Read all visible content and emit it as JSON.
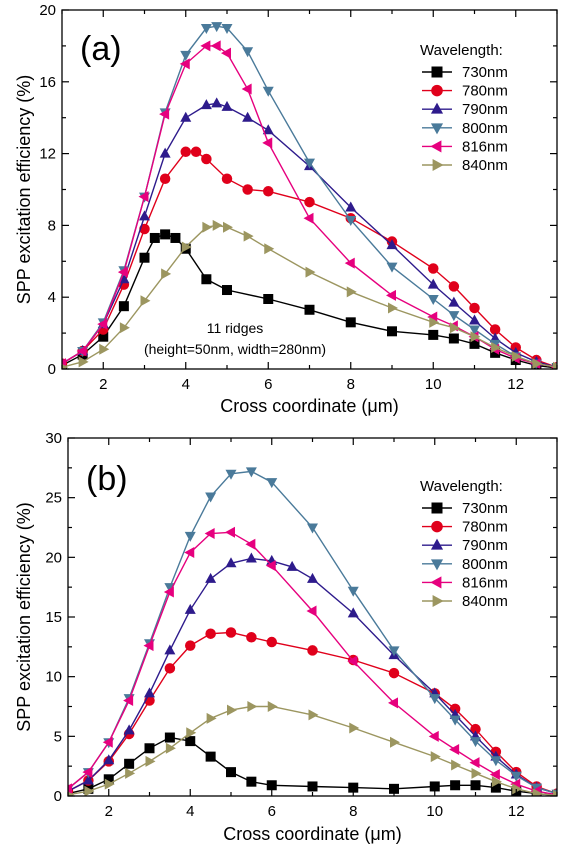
{
  "chart_data": [
    {
      "type": "scatter",
      "panel_label": "(a)",
      "xlabel": "Cross coordinate (μm)",
      "ylabel": "SPP excitation efficiency (%)",
      "xlim": [
        1,
        13
      ],
      "ylim": [
        0,
        20
      ],
      "xticks": [
        2,
        4,
        6,
        8,
        10,
        12
      ],
      "yticks": [
        0,
        4,
        8,
        12,
        16,
        20
      ],
      "grid": false,
      "legend_title": "Wavelength:",
      "legend_position": "top-right",
      "annotation": [
        "11 ridges",
        "(height=50nm, width=280nm)"
      ],
      "series": [
        {
          "name": "730nm",
          "color": "#000000",
          "marker": "square",
          "x": [
            1.0,
            1.5,
            2.0,
            2.5,
            3.0,
            3.25,
            3.5,
            3.75,
            4.0,
            4.5,
            5.0,
            6.0,
            7.0,
            8.0,
            9.0,
            10.0,
            10.5,
            11.0,
            11.5,
            12.0,
            12.5,
            13.0
          ],
          "y": [
            0.2,
            0.8,
            1.8,
            3.5,
            6.2,
            7.3,
            7.5,
            7.3,
            6.7,
            5.0,
            4.4,
            3.9,
            3.3,
            2.6,
            2.1,
            1.9,
            1.7,
            1.4,
            0.9,
            0.5,
            0.2,
            0.05
          ]
        },
        {
          "name": "780nm",
          "color": "#e0001b",
          "marker": "circle",
          "x": [
            1.0,
            1.5,
            2.0,
            2.5,
            3.0,
            3.5,
            4.0,
            4.25,
            4.5,
            5.0,
            5.5,
            6.0,
            7.0,
            8.0,
            9.0,
            10.0,
            10.5,
            11.0,
            11.5,
            12.0,
            12.5,
            13.0
          ],
          "y": [
            0.3,
            1.0,
            2.2,
            4.7,
            7.8,
            10.6,
            12.1,
            12.1,
            11.7,
            10.6,
            10.0,
            9.9,
            9.3,
            8.4,
            7.1,
            5.6,
            4.6,
            3.4,
            2.2,
            1.2,
            0.5,
            0.1
          ]
        },
        {
          "name": "790nm",
          "color": "#2e1b8c",
          "marker": "triangle-up",
          "x": [
            1.0,
            1.5,
            2.0,
            2.5,
            3.0,
            3.5,
            4.0,
            4.5,
            4.75,
            5.0,
            5.5,
            6.0,
            7.0,
            8.0,
            9.0,
            10.0,
            10.5,
            11.0,
            11.5,
            12.0,
            12.5,
            13.0
          ],
          "y": [
            0.3,
            1.0,
            2.5,
            5.0,
            8.5,
            12.0,
            14.0,
            14.7,
            14.8,
            14.6,
            14.0,
            13.3,
            11.3,
            9.0,
            6.9,
            4.7,
            3.7,
            2.7,
            1.7,
            0.9,
            0.4,
            0.1
          ]
        },
        {
          "name": "800nm",
          "color": "#4a7a9a",
          "marker": "triangle-down",
          "x": [
            1.0,
            1.5,
            2.0,
            2.5,
            3.0,
            3.5,
            4.0,
            4.5,
            4.75,
            5.0,
            5.5,
            6.0,
            7.0,
            8.0,
            9.0,
            10.0,
            10.5,
            11.0,
            11.5,
            12.0,
            12.5,
            13.0
          ],
          "y": [
            0.3,
            1.0,
            2.6,
            5.5,
            9.6,
            14.3,
            17.5,
            19.0,
            19.1,
            19.0,
            17.7,
            15.5,
            11.5,
            8.3,
            5.7,
            3.9,
            3.0,
            2.2,
            1.4,
            0.7,
            0.3,
            0.1
          ]
        },
        {
          "name": "816nm",
          "color": "#e6007e",
          "marker": "triangle-left",
          "x": [
            1.0,
            1.5,
            2.0,
            2.5,
            3.0,
            3.5,
            4.0,
            4.5,
            4.75,
            5.0,
            5.5,
            6.0,
            7.0,
            8.0,
            9.0,
            10.0,
            10.5,
            11.0,
            11.5,
            12.0,
            12.5,
            13.0
          ],
          "y": [
            0.3,
            1.0,
            2.5,
            5.4,
            9.6,
            14.2,
            17.0,
            18.0,
            18.0,
            17.6,
            15.6,
            12.6,
            8.4,
            5.9,
            4.1,
            2.9,
            2.4,
            1.8,
            1.1,
            0.6,
            0.3,
            0.1
          ]
        },
        {
          "name": "840nm",
          "color": "#9c9660",
          "marker": "triangle-right",
          "x": [
            1.0,
            1.5,
            2.0,
            2.5,
            3.0,
            3.5,
            4.0,
            4.5,
            4.75,
            5.0,
            5.5,
            6.0,
            7.0,
            8.0,
            9.0,
            10.0,
            10.5,
            11.0,
            11.5,
            12.0,
            12.5,
            13.0
          ],
          "y": [
            0.1,
            0.4,
            1.1,
            2.3,
            3.8,
            5.3,
            6.8,
            7.9,
            8.0,
            7.9,
            7.4,
            6.7,
            5.4,
            4.3,
            3.4,
            2.6,
            2.3,
            1.8,
            1.2,
            0.7,
            0.3,
            0.1
          ]
        }
      ]
    },
    {
      "type": "scatter",
      "panel_label": "(b)",
      "xlabel": "Cross coordinate (μm)",
      "ylabel": "SPP excitation efficiency (%)",
      "xlim": [
        1,
        13
      ],
      "ylim": [
        0,
        30
      ],
      "xticks": [
        2,
        4,
        6,
        8,
        10,
        12
      ],
      "yticks": [
        0,
        5,
        10,
        15,
        20,
        25,
        30
      ],
      "grid": false,
      "legend_title": "Wavelength:",
      "legend_position": "top-right",
      "series": [
        {
          "name": "730nm",
          "color": "#000000",
          "marker": "square",
          "x": [
            1.0,
            1.5,
            2.0,
            2.5,
            3.0,
            3.5,
            4.0,
            4.5,
            5.0,
            5.5,
            6.0,
            7.0,
            8.0,
            9.0,
            10.0,
            10.5,
            11.0,
            11.5,
            12.0,
            12.5,
            13.0
          ],
          "y": [
            0.2,
            0.6,
            1.4,
            2.7,
            4.0,
            4.9,
            4.6,
            3.3,
            2.0,
            1.2,
            0.9,
            0.8,
            0.7,
            0.6,
            0.8,
            0.9,
            0.9,
            0.7,
            0.4,
            0.2,
            0.05
          ]
        },
        {
          "name": "780nm",
          "color": "#e0001b",
          "marker": "circle",
          "x": [
            1.0,
            1.5,
            2.0,
            2.5,
            3.0,
            3.5,
            4.0,
            4.5,
            5.0,
            5.5,
            6.0,
            7.0,
            8.0,
            9.0,
            10.0,
            10.5,
            11.0,
            11.5,
            12.0,
            12.5,
            13.0
          ],
          "y": [
            0.4,
            1.3,
            2.9,
            5.2,
            8.0,
            10.7,
            12.6,
            13.6,
            13.7,
            13.3,
            12.9,
            12.2,
            11.4,
            10.3,
            8.6,
            7.3,
            5.6,
            3.7,
            2.0,
            0.8,
            0.2
          ]
        },
        {
          "name": "790nm",
          "color": "#2e1b8c",
          "marker": "triangle-up",
          "x": [
            1.0,
            1.5,
            2.0,
            2.5,
            3.0,
            3.5,
            4.0,
            4.5,
            5.0,
            5.5,
            6.0,
            6.5,
            7.0,
            8.0,
            9.0,
            10.0,
            10.5,
            11.0,
            11.5,
            12.0,
            12.5,
            13.0
          ],
          "y": [
            0.4,
            1.3,
            3.0,
            5.5,
            8.6,
            12.2,
            15.6,
            18.2,
            19.5,
            19.9,
            19.7,
            19.2,
            18.2,
            15.3,
            11.8,
            8.6,
            6.8,
            5.0,
            3.3,
            1.8,
            0.7,
            0.2
          ]
        },
        {
          "name": "800nm",
          "color": "#4a7a9a",
          "marker": "triangle-down",
          "x": [
            1.0,
            1.5,
            2.0,
            2.5,
            3.0,
            3.5,
            4.0,
            4.5,
            5.0,
            5.5,
            6.0,
            7.0,
            8.0,
            9.0,
            10.0,
            10.5,
            11.0,
            11.5,
            12.0,
            12.5,
            13.0
          ],
          "y": [
            0.6,
            2.0,
            4.5,
            8.2,
            12.8,
            17.5,
            21.8,
            25.1,
            27.0,
            27.2,
            26.3,
            22.5,
            17.2,
            12.2,
            8.2,
            6.4,
            4.6,
            3.0,
            1.7,
            0.7,
            0.2
          ]
        },
        {
          "name": "816nm",
          "color": "#e6007e",
          "marker": "triangle-left",
          "x": [
            1.0,
            1.5,
            2.0,
            2.5,
            3.0,
            3.5,
            4.0,
            4.5,
            5.0,
            5.5,
            6.0,
            7.0,
            8.0,
            9.0,
            10.0,
            10.5,
            11.0,
            11.5,
            12.0,
            12.5,
            13.0
          ],
          "y": [
            0.6,
            2.0,
            4.5,
            8.0,
            12.6,
            17.1,
            20.4,
            22.0,
            22.1,
            21.1,
            19.3,
            15.5,
            11.3,
            7.8,
            5.0,
            3.9,
            2.8,
            1.8,
            1.0,
            0.4,
            0.1
          ]
        },
        {
          "name": "840nm",
          "color": "#9c9660",
          "marker": "triangle-right",
          "x": [
            1.0,
            1.5,
            2.0,
            2.5,
            3.0,
            3.5,
            4.0,
            4.5,
            5.0,
            5.5,
            6.0,
            7.0,
            8.0,
            9.0,
            10.0,
            10.5,
            11.0,
            11.5,
            12.0,
            12.5,
            13.0
          ],
          "y": [
            0.1,
            0.4,
            1.0,
            1.9,
            2.9,
            4.0,
            5.3,
            6.5,
            7.2,
            7.5,
            7.5,
            6.8,
            5.7,
            4.5,
            3.3,
            2.6,
            1.9,
            1.2,
            0.6,
            0.2,
            0.05
          ]
        }
      ]
    }
  ]
}
